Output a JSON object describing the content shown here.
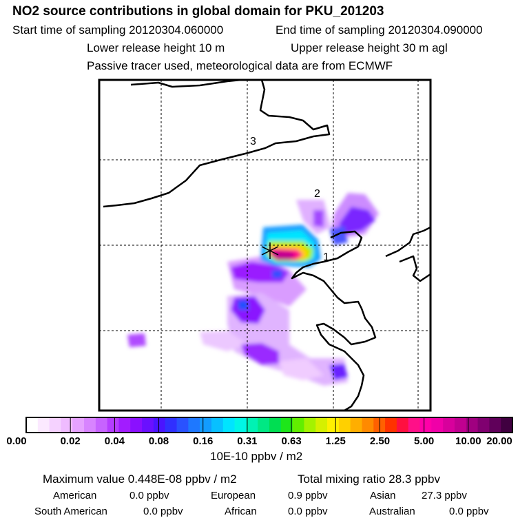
{
  "header": {
    "title": "NO2 source contributions in global domain for PKU_201203",
    "start": "Start time of sampling 20120304.060000",
    "end": "End time of sampling 20120304.090000",
    "lower": "Lower release height   10 m",
    "upper": "Upper release height   30 m    agl",
    "tracer": "Passive tracer used, meteorological data are from ECMWF"
  },
  "map": {
    "region_labels": [
      "3",
      "2",
      "1"
    ],
    "colorbar_ticks": [
      "0.00",
      "0.02",
      "0.04",
      "0.08",
      "0.16",
      "0.31",
      "0.63",
      "1.25",
      "2.50",
      "5.00",
      "10.00",
      "20.00"
    ],
    "colorbar_colors": [
      "#ffffff",
      "#fbe9ff",
      "#f5d2ff",
      "#efbbff",
      "#e6a2ff",
      "#d884ff",
      "#c763ff",
      "#b53dff",
      "#a21cff",
      "#8a10ff",
      "#6a10ff",
      "#4a14ff",
      "#3030ff",
      "#2a52ff",
      "#1e78ff",
      "#129cff",
      "#08c0ff",
      "#00e4ff",
      "#00f6e6",
      "#00f2b4",
      "#00e884",
      "#00de52",
      "#1ee61a",
      "#62ee00",
      "#a4f200",
      "#d6f000",
      "#fff000",
      "#ffd000",
      "#ffae00",
      "#ff8a00",
      "#ff6000",
      "#ff3200",
      "#ff1040",
      "#ff1088",
      "#ff00a8",
      "#f000a8",
      "#d8009c",
      "#c00090",
      "#a00080",
      "#800070",
      "#60005a",
      "#400040"
    ],
    "units": "10E-10 ppbv / m2"
  },
  "footer": {
    "max": "Maximum value  0.448E-08 ppbv / m2",
    "total": "Total mixing ratio       28.3 ppbv",
    "regions": [
      {
        "name": "American",
        "value": "0.0 ppbv"
      },
      {
        "name": "European",
        "value": "0.9 ppbv"
      },
      {
        "name": "Asian",
        "value": "27.3 ppbv"
      },
      {
        "name": "South American",
        "value": "0.0 ppbv"
      },
      {
        "name": "African",
        "value": "0.0 ppbv"
      },
      {
        "name": "Australian",
        "value": "0.0 ppbv"
      }
    ]
  }
}
